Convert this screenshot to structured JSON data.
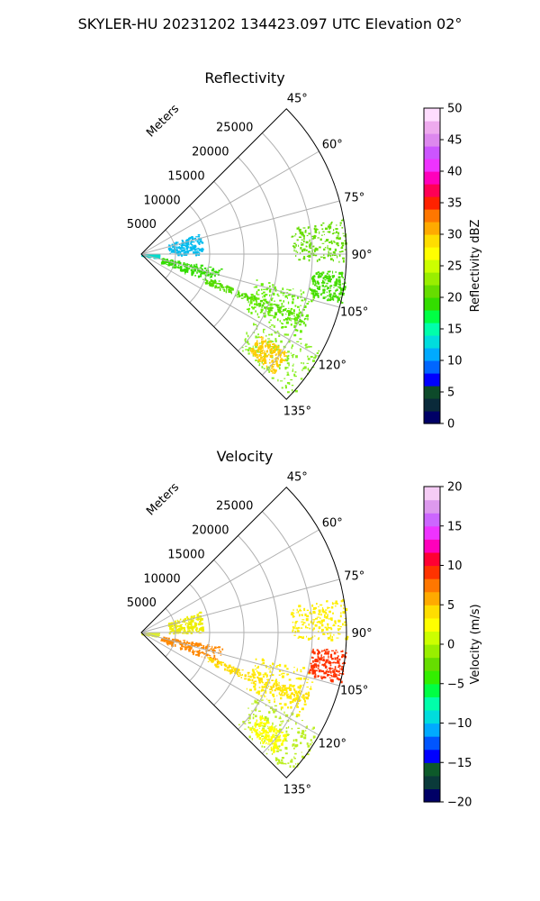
{
  "figure_title": "SKYLER-HU  20231202  134423.097 UTC Elevation 02°",
  "chart_data": [
    {
      "type": "polar-sector",
      "title": "Reflectivity",
      "radial_label": "Meters",
      "radial_ticks": [
        5000,
        10000,
        15000,
        20000,
        25000
      ],
      "angle_ticks": [
        "45°",
        "60°",
        "75°",
        "90°",
        "105°",
        "120°",
        "135°"
      ],
      "angle_range": [
        45,
        135
      ],
      "range_max_m": 30000,
      "colorbar": {
        "label": "Reflectivity dBZ",
        "min": 0,
        "max": 50,
        "ticks": [
          0,
          5,
          10,
          15,
          20,
          25,
          30,
          35,
          40,
          45,
          50
        ],
        "colors": [
          "#000066",
          "#0a2a3a",
          "#0d4a2a",
          "#0000ff",
          "#0066ff",
          "#00aaff",
          "#00dddd",
          "#00ffaa",
          "#00ff44",
          "#33dd00",
          "#66dd00",
          "#99ee00",
          "#ccff00",
          "#ffff00",
          "#ffdd00",
          "#ffaa00",
          "#ff7700",
          "#ff2200",
          "#ff0055",
          "#ff00bb",
          "#ee33ff",
          "#cc55ff",
          "#dd88ee",
          "#eeaaee",
          "#ffddff"
        ]
      },
      "echo_regions": [
        {
          "angle": [
            88,
            100
          ],
          "range": [
            0,
            2500
          ],
          "color": "#00ddcc"
        },
        {
          "angle": [
            100,
            112
          ],
          "range": [
            3000,
            12000
          ],
          "color": "#33dd00"
        },
        {
          "angle": [
            110,
            114
          ],
          "range": [
            10000,
            26000
          ],
          "color": "#55dd00"
        },
        {
          "angle": [
            102,
            118
          ],
          "range": [
            17000,
            26000
          ],
          "color": "#66ee00"
        },
        {
          "angle": [
            95,
            104
          ],
          "range": [
            25000,
            30000
          ],
          "color": "#44dd00"
        },
        {
          "angle": [
            80,
            92
          ],
          "range": [
            22000,
            30000
          ],
          "color": "#66dd00"
        },
        {
          "angle": [
            118,
            134
          ],
          "range": [
            19000,
            30000
          ],
          "color": "#88ee22"
        },
        {
          "angle": [
            124,
            132
          ],
          "range": [
            21000,
            26000
          ],
          "color": "#ffcc00"
        },
        {
          "angle": [
            70,
            90
          ],
          "range": [
            4000,
            9000
          ],
          "color": "#00bbee"
        }
      ]
    },
    {
      "type": "polar-sector",
      "title": "Velocity",
      "radial_label": "Meters",
      "radial_ticks": [
        5000,
        10000,
        15000,
        20000,
        25000
      ],
      "angle_ticks": [
        "45°",
        "60°",
        "75°",
        "90°",
        "105°",
        "120°",
        "135°"
      ],
      "angle_range": [
        45,
        135
      ],
      "range_max_m": 30000,
      "colorbar": {
        "label": "Velocity (m/s)",
        "min": -20,
        "max": 20,
        "ticks": [
          -20,
          -15,
          -10,
          -5,
          0,
          5,
          10,
          15,
          20
        ],
        "colors": [
          "#000066",
          "#0a3a3a",
          "#0d5a2a",
          "#0000ff",
          "#0055ff",
          "#00aaff",
          "#00dddd",
          "#00ffaa",
          "#00ff44",
          "#33ee00",
          "#66dd00",
          "#99ee00",
          "#ccff00",
          "#ffff00",
          "#ffdd00",
          "#ffaa00",
          "#ff7700",
          "#ff3300",
          "#ff0033",
          "#ff00bb",
          "#ee33ff",
          "#cc66ff",
          "#dd99ee",
          "#f5ccf5"
        ]
      },
      "echo_regions": [
        {
          "angle": [
            88,
            100
          ],
          "range": [
            0,
            2500
          ],
          "color": "#ddee33"
        },
        {
          "angle": [
            100,
            112
          ],
          "range": [
            3000,
            12000
          ],
          "color": "#ff8800"
        },
        {
          "angle": [
            110,
            114
          ],
          "range": [
            10000,
            26000
          ],
          "color": "#ffdd00"
        },
        {
          "angle": [
            102,
            118
          ],
          "range": [
            17000,
            26000
          ],
          "color": "#ffee00"
        },
        {
          "angle": [
            95,
            104
          ],
          "range": [
            25000,
            30000
          ],
          "color": "#ff3300"
        },
        {
          "angle": [
            80,
            92
          ],
          "range": [
            22000,
            30000
          ],
          "color": "#ffee00"
        },
        {
          "angle": [
            118,
            134
          ],
          "range": [
            19000,
            30000
          ],
          "color": "#bbee22"
        },
        {
          "angle": [
            125,
            132
          ],
          "range": [
            21000,
            26000
          ],
          "color": "#ffff00"
        },
        {
          "angle": [
            70,
            90
          ],
          "range": [
            4000,
            9000
          ],
          "color": "#eeee00"
        }
      ]
    }
  ]
}
